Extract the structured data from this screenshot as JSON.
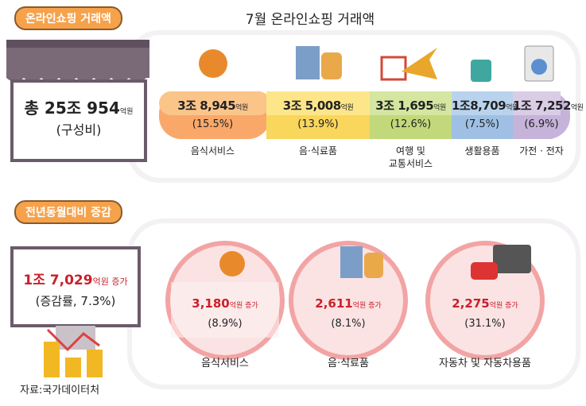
{
  "title": "7월 온라인쇼핑 거래액",
  "section1": {
    "badge": "온라인쇼핑 거래액",
    "total": {
      "prefix": "총",
      "amount": "25조 954",
      "unit": "억원",
      "note": "(구성비)"
    },
    "items": [
      {
        "amount": "3조 8,945",
        "unit": "억원",
        "share": "(15.5%)",
        "label": "음식서비스"
      },
      {
        "amount": "3조 5,008",
        "unit": "억원",
        "share": "(13.9%)",
        "label": "음·식료품"
      },
      {
        "amount": "3조 1,695",
        "unit": "억원",
        "share": "(12.6%)",
        "label": "여행 및\n교통서비스"
      },
      {
        "amount": "1조8,709",
        "unit": "억원",
        "share": "(7.5%)",
        "label": "생활용품"
      },
      {
        "amount": "1조 7,252",
        "unit": "억원",
        "share": "(6.9%)",
        "label": "가전 · 전자"
      }
    ]
  },
  "section2": {
    "badge": "전년동월대비 증감",
    "total": {
      "amount": "1조 7,029",
      "unit": "억원 증가",
      "note": "(증감률, 7.3%)"
    },
    "items": [
      {
        "amount": "3,180",
        "unit": "억원 증가",
        "rate": "(8.9%)",
        "label": "음식서비스"
      },
      {
        "amount": "2,611",
        "unit": "억원 증가",
        "rate": "(8.1%)",
        "label": "음·식료품"
      },
      {
        "amount": "2,275",
        "unit": "억원 증가",
        "rate": "(31.1%)",
        "label": "자동차 및 자동차용품"
      }
    ]
  },
  "source": "자료:국가데이터처"
}
